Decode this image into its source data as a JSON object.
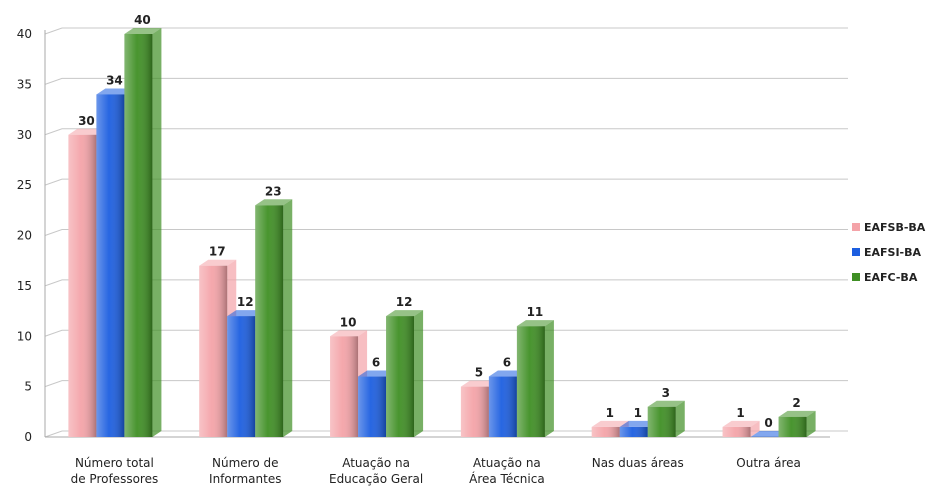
{
  "chart_data": {
    "type": "bar3d",
    "categories": [
      [
        "Número total",
        "de Professores"
      ],
      [
        "Número de",
        "Informantes"
      ],
      [
        "Atuação na",
        "Educação Geral"
      ],
      [
        "Atuação na",
        "Área Técnica"
      ],
      [
        "Nas duas áreas"
      ],
      [
        "Outra área"
      ]
    ],
    "series": [
      {
        "name": "EAFSB-BA",
        "color": "#f4a3a8",
        "values": [
          30,
          17,
          10,
          5,
          1,
          1
        ]
      },
      {
        "name": "EAFSI-BA",
        "color": "#1c5ee0",
        "values": [
          34,
          12,
          6,
          6,
          1,
          0
        ]
      },
      {
        "name": "EAFC-BA",
        "color": "#3f8f24",
        "values": [
          40,
          23,
          12,
          11,
          3,
          2
        ]
      }
    ],
    "ylim": [
      0,
      40
    ],
    "yticks": [
      0,
      5,
      10,
      15,
      20,
      25,
      30,
      35,
      40
    ],
    "grid": true,
    "legend": "right"
  }
}
